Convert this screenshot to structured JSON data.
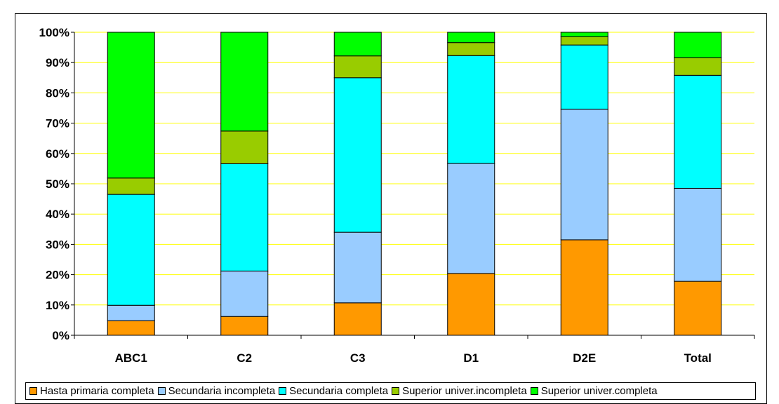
{
  "chart_data": {
    "type": "bar",
    "stacked": true,
    "percent": true,
    "categories": [
      "ABC1",
      "C2",
      "C3",
      "D1",
      "D2E",
      "Total"
    ],
    "series": [
      {
        "name": "Hasta primaria completa",
        "color": "#FF9900",
        "values": [
          4.8,
          6.2,
          10.7,
          20.4,
          31.5,
          17.8
        ]
      },
      {
        "name": "Secundaria incompleta",
        "color": "#99CCFF",
        "values": [
          5.1,
          15.0,
          23.3,
          36.3,
          43.1,
          30.7
        ]
      },
      {
        "name": "Secundaria completa",
        "color": "#00FFFF",
        "values": [
          36.6,
          35.4,
          51.0,
          35.6,
          21.2,
          37.3
        ]
      },
      {
        "name": "Superior univer.incompleta",
        "color": "#99CC00",
        "values": [
          5.4,
          10.8,
          7.2,
          4.3,
          2.7,
          5.8
        ]
      },
      {
        "name": "Superior univer.completa",
        "color": "#00FF00",
        "values": [
          48.1,
          32.6,
          7.8,
          3.4,
          1.5,
          8.4
        ]
      }
    ],
    "yticks": [
      "0%",
      "10%",
      "20%",
      "30%",
      "40%",
      "50%",
      "60%",
      "70%",
      "80%",
      "90%",
      "100%"
    ],
    "ylim": [
      0,
      100
    ],
    "grid": true,
    "grid_color": "#FFFF00",
    "legend_position": "bottom",
    "title": "",
    "xlabel": "",
    "ylabel": ""
  }
}
